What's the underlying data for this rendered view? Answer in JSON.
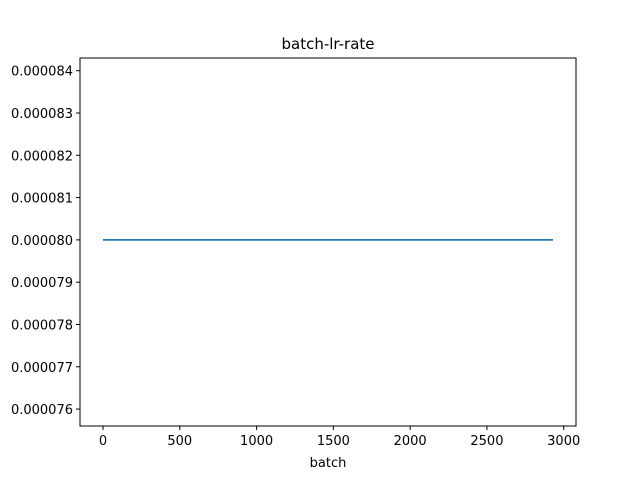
{
  "chart_data": {
    "type": "line",
    "title": "batch-lr-rate",
    "xlabel": "batch",
    "ylabel": "",
    "xlim": [
      -150,
      3080
    ],
    "ylim": [
      7.56e-05,
      8.43e-05
    ],
    "xticks": [
      0,
      500,
      1000,
      1500,
      2000,
      2500,
      3000
    ],
    "xtick_labels": [
      "0",
      "500",
      "1000",
      "1500",
      "2000",
      "2500",
      "3000"
    ],
    "yticks": [
      7.6e-05,
      7.7e-05,
      7.8e-05,
      7.9e-05,
      8e-05,
      8.1e-05,
      8.2e-05,
      8.3e-05,
      8.4e-05
    ],
    "ytick_labels": [
      "0.000076",
      "0.000077",
      "0.000078",
      "0.000079",
      "0.000080",
      "0.000081",
      "0.000082",
      "0.000083",
      "0.000084"
    ],
    "grid": false,
    "series": [
      {
        "x": [
          0,
          2930
        ],
        "y": [
          8e-05,
          8e-05
        ],
        "color": "#1f77b4"
      }
    ]
  }
}
